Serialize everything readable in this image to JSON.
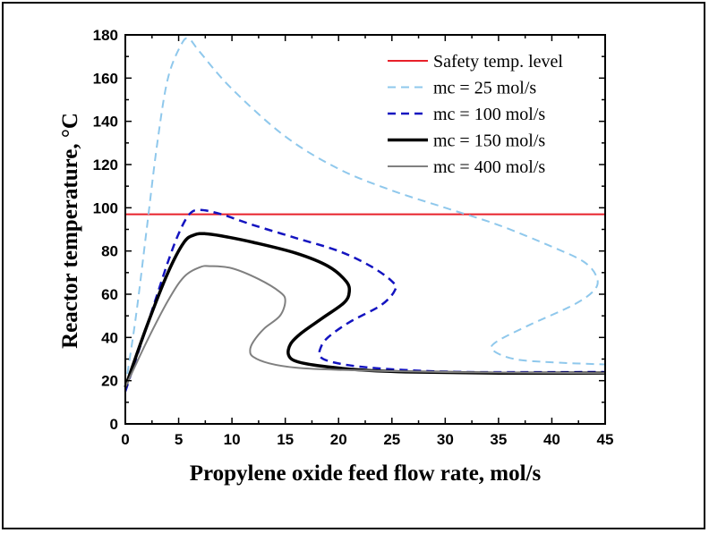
{
  "chart_data": {
    "type": "line",
    "xlabel": "Propylene oxide feed flow rate, mol/s",
    "ylabel": "Reactor temperature, °C",
    "xlim": [
      0,
      45
    ],
    "ylim": [
      0,
      180
    ],
    "xticks": [
      "0",
      "5",
      "10",
      "15",
      "20",
      "25",
      "30",
      "35",
      "40",
      "45"
    ],
    "yticks": [
      "0",
      "20",
      "40",
      "60",
      "80",
      "100",
      "120",
      "140",
      "160",
      "180"
    ],
    "grid": false,
    "legend_position": "top-right",
    "series": [
      {
        "name": "Safety temp. level",
        "color": "#e8202a",
        "style": "solid",
        "width": 2,
        "points": [
          [
            0,
            97
          ],
          [
            45,
            97
          ]
        ]
      },
      {
        "name": "mc = 25 mol/s",
        "color": "#8fc8ec",
        "style": "dashed",
        "width": 2,
        "points": [
          [
            0,
            17
          ],
          [
            1,
            50
          ],
          [
            2,
            90
          ],
          [
            3,
            130
          ],
          [
            4,
            160
          ],
          [
            5.3,
            176
          ],
          [
            6,
            178
          ],
          [
            7,
            172
          ],
          [
            10,
            155
          ],
          [
            15,
            133
          ],
          [
            20,
            118
          ],
          [
            25,
            108
          ],
          [
            30,
            100
          ],
          [
            35,
            92
          ],
          [
            40,
            82
          ],
          [
            43,
            75
          ],
          [
            44.2,
            68
          ],
          [
            44,
            62
          ],
          [
            42,
            55
          ],
          [
            38,
            46
          ],
          [
            34.8,
            38
          ],
          [
            34.5,
            34
          ],
          [
            36.5,
            30
          ],
          [
            40,
            28.5
          ],
          [
            45,
            27.5
          ]
        ]
      },
      {
        "name": "mc = 100 mol/s",
        "color": "#1414c0",
        "style": "dashed",
        "width": 2.5,
        "points": [
          [
            0,
            15
          ],
          [
            1,
            30
          ],
          [
            2,
            45
          ],
          [
            3,
            60
          ],
          [
            4,
            75
          ],
          [
            5,
            88
          ],
          [
            6,
            97
          ],
          [
            7,
            99
          ],
          [
            9,
            97
          ],
          [
            12,
            92
          ],
          [
            16,
            86
          ],
          [
            20,
            80
          ],
          [
            23,
            73
          ],
          [
            25,
            66
          ],
          [
            25.3,
            62
          ],
          [
            24,
            55
          ],
          [
            21,
            47
          ],
          [
            19,
            40
          ],
          [
            18.3,
            35
          ],
          [
            18.3,
            31
          ],
          [
            19.5,
            28.5
          ],
          [
            22,
            26.5
          ],
          [
            26,
            25
          ],
          [
            32,
            24
          ],
          [
            45,
            24
          ]
        ]
      },
      {
        "name": "mc = 150 mol/s",
        "color": "#000000",
        "style": "solid",
        "width": 3.5,
        "points": [
          [
            0,
            17
          ],
          [
            2,
            45
          ],
          [
            4,
            70
          ],
          [
            5.5,
            84
          ],
          [
            6.5,
            87.5
          ],
          [
            7.5,
            88
          ],
          [
            9,
            87
          ],
          [
            12,
            84
          ],
          [
            16,
            79
          ],
          [
            19,
            73
          ],
          [
            20.7,
            66
          ],
          [
            21,
            61
          ],
          [
            20.5,
            56
          ],
          [
            18.5,
            49
          ],
          [
            16.5,
            42
          ],
          [
            15.5,
            37
          ],
          [
            15.3,
            32
          ],
          [
            16,
            29
          ],
          [
            18,
            27
          ],
          [
            22,
            25
          ],
          [
            27,
            24
          ],
          [
            35,
            23.5
          ],
          [
            45,
            23.5
          ]
        ]
      },
      {
        "name": "mc = 400 mol/s",
        "color": "#808080",
        "style": "solid",
        "width": 2,
        "points": [
          [
            0,
            17
          ],
          [
            2,
            38
          ],
          [
            4,
            57
          ],
          [
            5.5,
            68
          ],
          [
            7,
            72.5
          ],
          [
            8,
            73
          ],
          [
            10,
            72
          ],
          [
            12.5,
            67
          ],
          [
            14.5,
            61
          ],
          [
            15,
            57
          ],
          [
            14.5,
            50
          ],
          [
            13,
            44
          ],
          [
            12,
            38
          ],
          [
            11.7,
            34
          ],
          [
            12,
            31
          ],
          [
            13.5,
            28
          ],
          [
            16,
            26
          ],
          [
            20,
            25
          ],
          [
            30,
            24
          ],
          [
            45,
            23.5
          ]
        ]
      }
    ]
  }
}
